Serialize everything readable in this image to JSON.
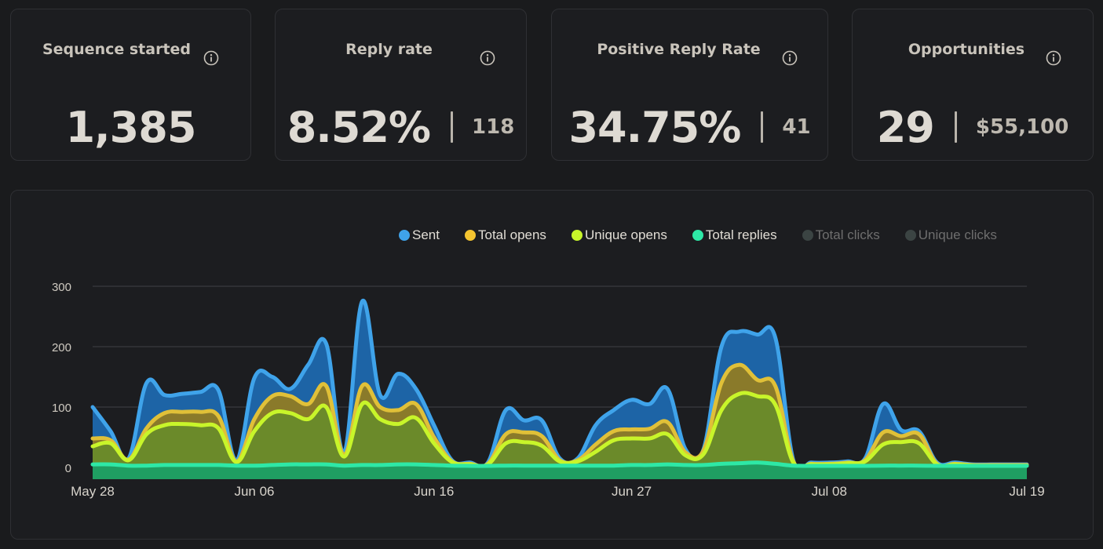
{
  "cards": [
    {
      "title": "Sequence started",
      "value": "1,385",
      "sub": null
    },
    {
      "title": "Reply rate",
      "value": "8.52%",
      "sub": "118"
    },
    {
      "title": "Positive Reply Rate",
      "value": "34.75%",
      "sub": "41"
    },
    {
      "title": "Opportunities",
      "value": "29",
      "sub": "$55,100"
    }
  ],
  "legend": [
    {
      "label": "Sent",
      "color": "#3fa3ea",
      "active": true
    },
    {
      "label": "Total opens",
      "color": "#f4c430",
      "active": true
    },
    {
      "label": "Unique opens",
      "color": "#c8f52a",
      "active": true
    },
    {
      "label": "Total replies",
      "color": "#2ee8a6",
      "active": true
    },
    {
      "label": "Total clicks",
      "color": "#3b4443",
      "active": false
    },
    {
      "label": "Unique clicks",
      "color": "#3b4443",
      "active": false
    }
  ],
  "chart_data": {
    "type": "area",
    "x": [
      "May 28",
      "May 29",
      "May 30",
      "May 31",
      "Jun 01",
      "Jun 02",
      "Jun 03",
      "Jun 04",
      "Jun 05",
      "Jun 06",
      "Jun 07",
      "Jun 08",
      "Jun 09",
      "Jun 10",
      "Jun 11",
      "Jun 12",
      "Jun 13",
      "Jun 14",
      "Jun 15",
      "Jun 16",
      "Jun 17",
      "Jun 18",
      "Jun 19",
      "Jun 20",
      "Jun 21",
      "Jun 22",
      "Jun 23",
      "Jun 24",
      "Jun 25",
      "Jun 26",
      "Jun 27",
      "Jun 28",
      "Jun 29",
      "Jun 30",
      "Jul 01",
      "Jul 02",
      "Jul 03",
      "Jul 04",
      "Jul 05",
      "Jul 06",
      "Jul 07",
      "Jul 08",
      "Jul 09",
      "Jul 10",
      "Jul 11",
      "Jul 12",
      "Jul 13",
      "Jul 14",
      "Jul 15",
      "Jul 16",
      "Jul 17",
      "Jul 18",
      "Jul 19"
    ],
    "xticks": [
      "May 28",
      "Jun 06",
      "Jun 16",
      "Jun 27",
      "Jul 08",
      "Jul 19"
    ],
    "series": [
      {
        "name": "Sent",
        "color": "#3fa3ea",
        "fill": "#1d64a6",
        "values": [
          100,
          60,
          15,
          140,
          120,
          122,
          125,
          128,
          12,
          148,
          150,
          130,
          170,
          205,
          25,
          275,
          120,
          155,
          130,
          70,
          12,
          8,
          8,
          95,
          78,
          78,
          15,
          15,
          70,
          95,
          112,
          105,
          130,
          30,
          30,
          200,
          225,
          220,
          215,
          12,
          8,
          8,
          10,
          15,
          105,
          62,
          60,
          8,
          8,
          5,
          5,
          5,
          5
        ]
      },
      {
        "name": "Total opens",
        "color": "#e0c038",
        "fill": "#8a7a2a",
        "values": [
          48,
          45,
          13,
          65,
          90,
          92,
          92,
          85,
          10,
          80,
          118,
          118,
          105,
          135,
          22,
          135,
          100,
          95,
          105,
          50,
          10,
          6,
          6,
          55,
          58,
          52,
          12,
          12,
          38,
          60,
          63,
          64,
          75,
          25,
          28,
          140,
          170,
          145,
          135,
          10,
          6,
          6,
          8,
          12,
          58,
          52,
          55,
          6,
          6,
          4,
          4,
          4,
          4
        ]
      },
      {
        "name": "Unique opens",
        "color": "#c8f52a",
        "fill": "#6b8a2a",
        "values": [
          35,
          40,
          12,
          55,
          70,
          72,
          70,
          65,
          9,
          60,
          90,
          90,
          80,
          100,
          18,
          105,
          80,
          72,
          82,
          40,
          9,
          5,
          5,
          40,
          42,
          36,
          10,
          10,
          26,
          45,
          48,
          48,
          55,
          20,
          22,
          95,
          122,
          118,
          104,
          8,
          5,
          5,
          7,
          10,
          38,
          42,
          40,
          5,
          5,
          3,
          3,
          3,
          3
        ]
      },
      {
        "name": "Total replies",
        "color": "#2ee8a6",
        "fill": "#1f9e62",
        "values": [
          5,
          5,
          3,
          3,
          4,
          4,
          4,
          4,
          3,
          3,
          4,
          5,
          5,
          5,
          3,
          4,
          4,
          5,
          5,
          4,
          3,
          2,
          2,
          3,
          3,
          3,
          3,
          3,
          3,
          3,
          4,
          4,
          5,
          4,
          4,
          6,
          7,
          8,
          6,
          3,
          2,
          2,
          2,
          2,
          3,
          3,
          3,
          2,
          2,
          2,
          2,
          2,
          2
        ]
      }
    ],
    "y_ticks": [
      0,
      100,
      200,
      300
    ],
    "ylim": [
      0,
      300
    ],
    "grid": true,
    "legend_position": "top-right"
  }
}
